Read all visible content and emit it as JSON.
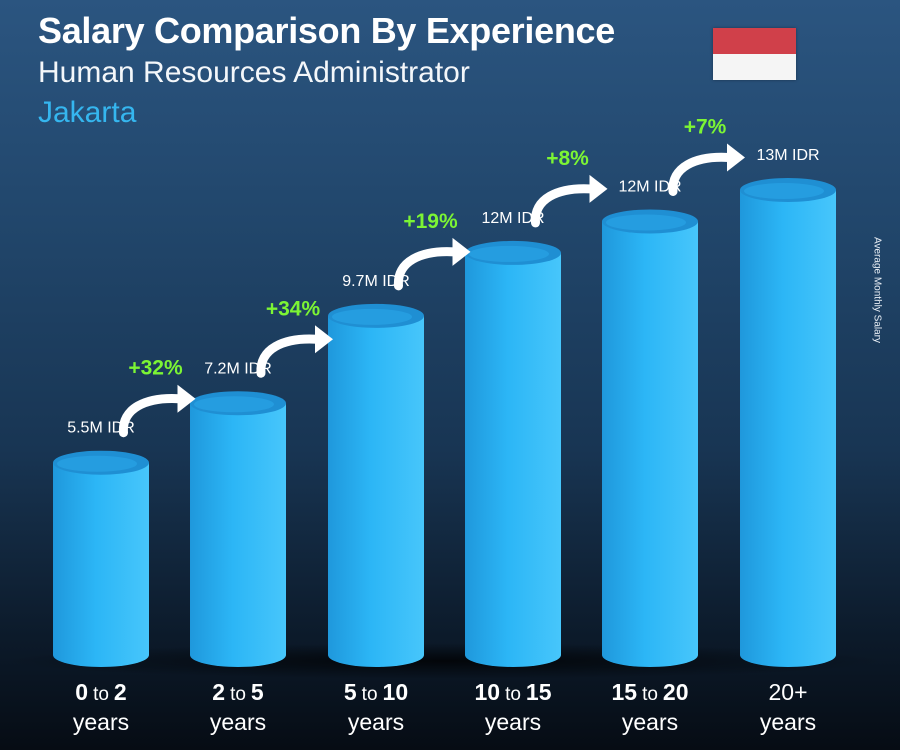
{
  "header": {
    "title": "Salary Comparison By Experience",
    "subtitle": "Human Resources Administrator",
    "location": "Jakarta"
  },
  "flag": {
    "name": "indonesia-flag",
    "colors": [
      "#d0404a",
      "#f5f5f5"
    ]
  },
  "side_label": "Average Monthly Salary",
  "colors": {
    "bar_front": "#2cb4f4",
    "bar_top": "#1f8fd3",
    "increase": "#7cf534",
    "arrow": "#ffffff",
    "location": "#35b6ef"
  },
  "chart_data": {
    "type": "bar",
    "title": "Salary Comparison By Experience",
    "ylabel": "Average Monthly Salary",
    "currency": "IDR",
    "categories": [
      {
        "bold_start": "0",
        "mid": "to",
        "bold_end": "2",
        "line2": "years"
      },
      {
        "bold_start": "2",
        "mid": "to",
        "bold_end": "5",
        "line2": "years"
      },
      {
        "bold_start": "5",
        "mid": "to",
        "bold_end": "10",
        "line2": "years"
      },
      {
        "bold_start": "10",
        "mid": "to",
        "bold_end": "15",
        "line2": "years"
      },
      {
        "bold_start": "15",
        "mid": "to",
        "bold_end": "20",
        "line2": "years"
      },
      {
        "plain": "20+",
        "line2": "years"
      }
    ],
    "values": [
      5.5,
      7.2,
      9.7,
      11.5,
      12.4,
      13.3
    ],
    "value_labels": [
      "5.5M IDR",
      "7.2M IDR",
      "9.7M IDR",
      "12M IDR",
      "12M IDR",
      "13M IDR"
    ],
    "increases": [
      "+32%",
      "+34%",
      "+19%",
      "+8%",
      "+7%"
    ],
    "ylim": [
      0,
      13.3
    ],
    "grid": false,
    "legend": "none"
  }
}
